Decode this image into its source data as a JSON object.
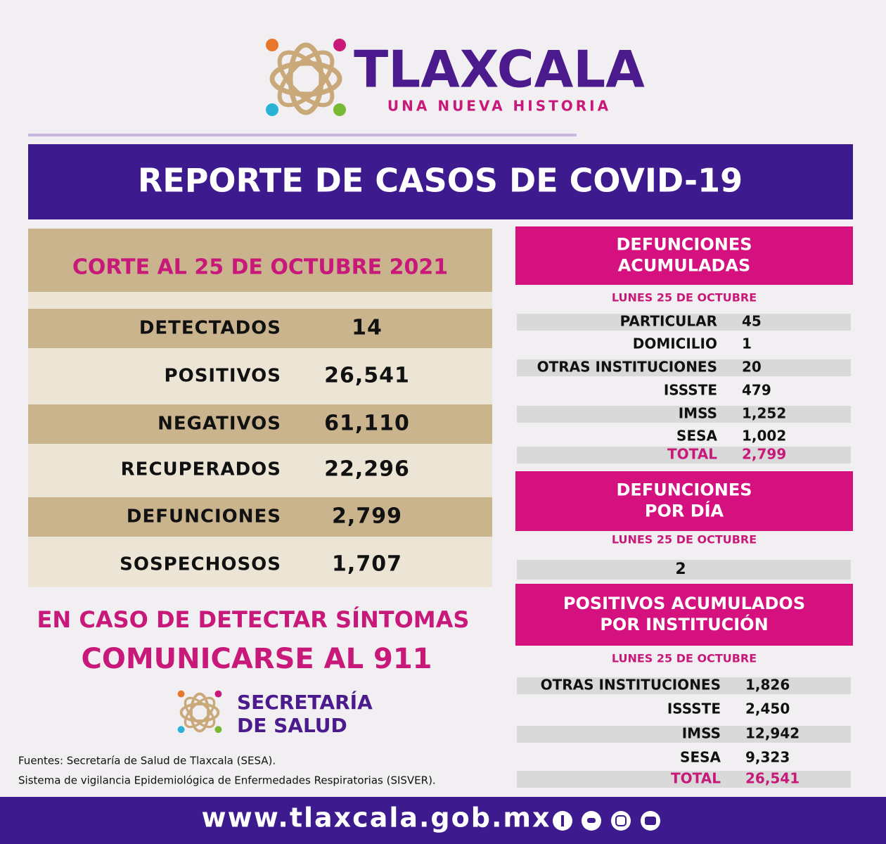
{
  "header": {
    "brand": "TLAXCALA",
    "tagline": "UNA NUEVA HISTORIA"
  },
  "banner": "REPORTE DE CASOS DE COVID-19",
  "summary": {
    "date": "CORTE AL 25 DE OCTUBRE 2021",
    "rows": [
      [
        "DETECTADOS",
        "14"
      ],
      [
        "POSITIVOS",
        "26,541"
      ],
      [
        "NEGATIVOS",
        "61,110"
      ],
      [
        "RECUPERADOS",
        "22,296"
      ],
      [
        "DEFUNCIONES",
        "2,799"
      ],
      [
        "SOSPECHOSOS",
        "1,707"
      ]
    ]
  },
  "alert": [
    "EN CASO DE DETECTAR SÍNTOMAS",
    "COMUNICARSE AL 911"
  ],
  "agency": [
    "SECRETARÍA",
    "DE SALUD"
  ],
  "sources": [
    "Fuentes:  Secretaría de Salud de Tlaxcala (SESA).",
    "Sistema de vigilancia Epidemiológica de Enfermedades Respiratorias (SISVER)."
  ],
  "deaths_total": {
    "title": [
      "DEFUNCIONES",
      "ACUMULADAS"
    ],
    "date": "LUNES 25 DE OCTUBRE",
    "rows": [
      [
        "PARTICULAR",
        "45"
      ],
      [
        "DOMICILIO",
        "1"
      ],
      [
        "OTRAS INSTITUCIONES",
        "20"
      ],
      [
        "ISSSTE",
        "479"
      ],
      [
        "IMSS",
        "1,252"
      ],
      [
        "SESA",
        "1,002"
      ],
      [
        "TOTAL",
        "2,799"
      ]
    ]
  },
  "deaths_daily": {
    "title": [
      "DEFUNCIONES",
      "POR DÍA"
    ],
    "date": "LUNES 25 DE OCTUBRE",
    "value": "2"
  },
  "positives": {
    "title": [
      "POSITIVOS ACUMULADOS",
      "POR INSTITUCIÓN"
    ],
    "date": "LUNES 25 DE OCTUBRE",
    "rows": [
      [
        "OTRAS INSTITUCIONES",
        "1,826"
      ],
      [
        "ISSSTE",
        "2,450"
      ],
      [
        "IMSS",
        "12,942"
      ],
      [
        "SESA",
        "9,323"
      ],
      [
        "TOTAL",
        "26,541"
      ]
    ]
  },
  "footer": {
    "url": "www.tlaxcala.gob.mx"
  }
}
